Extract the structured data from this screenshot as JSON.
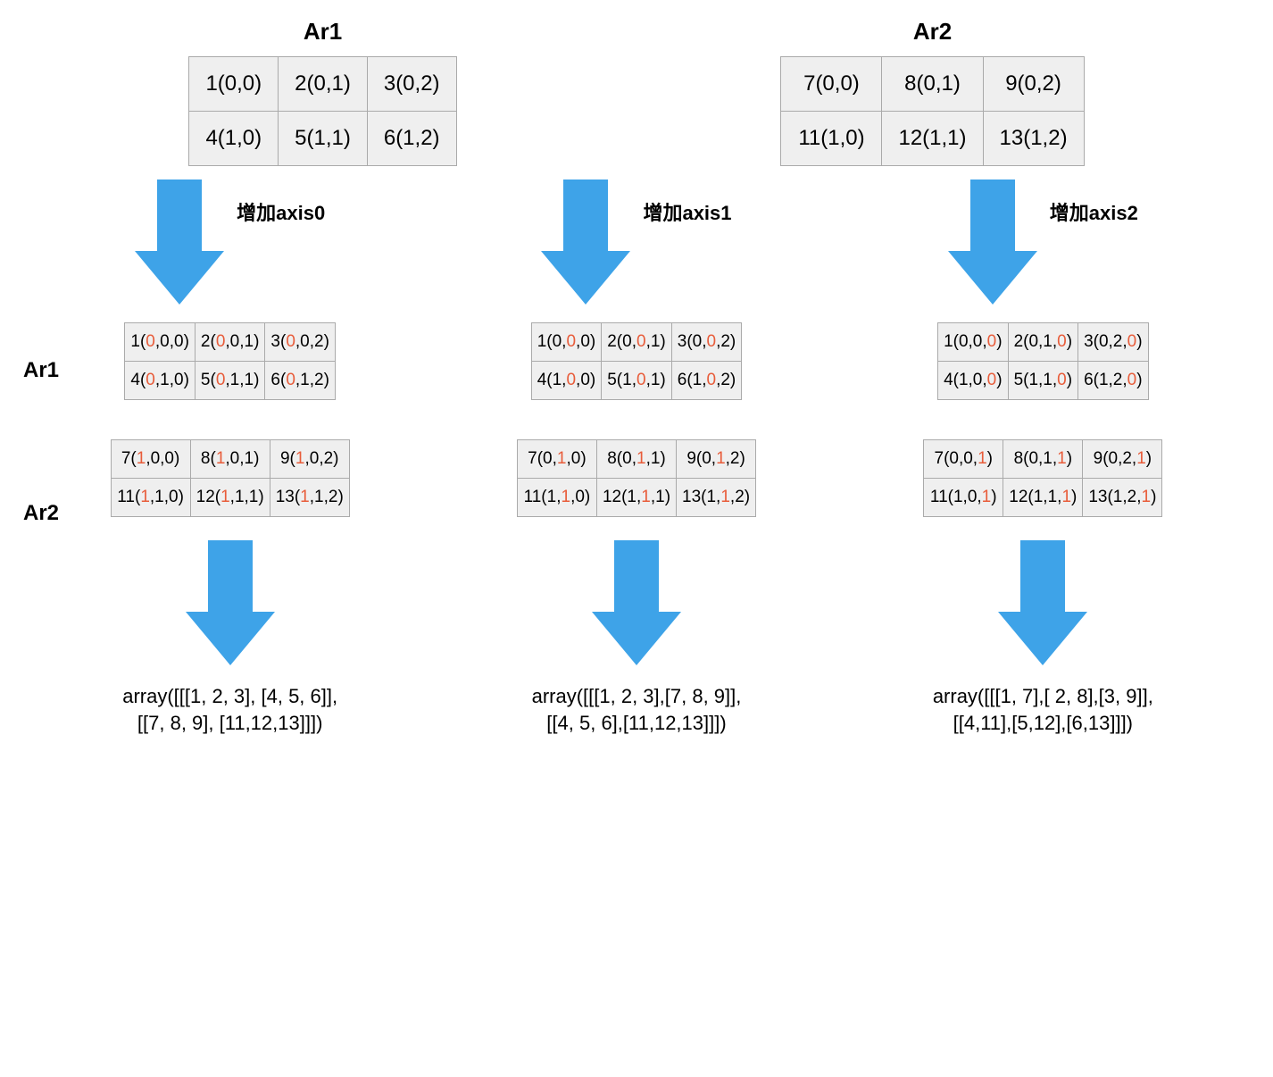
{
  "colors": {
    "arrow": "#3ea3e8",
    "highlight": "#e85c3a",
    "cell_bg": "#efefef",
    "cell_border": "#aaaaaa",
    "text": "#000000",
    "background": "#ffffff"
  },
  "typography": {
    "title_fontsize": 26,
    "cell_fontsize_top": 24,
    "cell_fontsize_mid": 19,
    "label_fontsize": 22,
    "result_fontsize": 22,
    "font_family": "Arial"
  },
  "layout": {
    "type": "diagram",
    "top_grid_rows": 2,
    "top_grid_cols": 3,
    "mid_grid_rows": 2,
    "mid_grid_cols": 3,
    "columns": 3,
    "arrow_shaft_width": 50,
    "arrow_head_width": 100,
    "arrow_total_height": 140
  },
  "top": {
    "ar1": {
      "title": "Ar1",
      "cells": [
        "1(0,0)",
        "2(0,1)",
        "3(0,2)",
        "4(1,0)",
        "5(1,1)",
        "6(1,2)"
      ]
    },
    "ar2": {
      "title": "Ar2",
      "cells": [
        "7(0,0)",
        "8(0,1)",
        "9(0,2)",
        "11(1,0)",
        "12(1,1)",
        "13(1,2)"
      ]
    }
  },
  "arrows": {
    "label0": "增加axis0",
    "label1": "增加axis1",
    "label2": "增加axis2"
  },
  "mid": {
    "side_ar1": "Ar1",
    "side_ar2": "Ar2",
    "col0": {
      "ar1": [
        [
          {
            "t": "1("
          },
          {
            "t": "0",
            "h": 1
          },
          {
            "t": ",0,0)"
          }
        ],
        [
          {
            "t": "2("
          },
          {
            "t": "0",
            "h": 1
          },
          {
            "t": ",0,1)"
          }
        ],
        [
          {
            "t": "3("
          },
          {
            "t": "0",
            "h": 1
          },
          {
            "t": ",0,2)"
          }
        ],
        [
          {
            "t": "4("
          },
          {
            "t": "0",
            "h": 1
          },
          {
            "t": ",1,0)"
          }
        ],
        [
          {
            "t": "5("
          },
          {
            "t": "0",
            "h": 1
          },
          {
            "t": ",1,1)"
          }
        ],
        [
          {
            "t": "6("
          },
          {
            "t": "0",
            "h": 1
          },
          {
            "t": ",1,2)"
          }
        ]
      ],
      "ar2": [
        [
          {
            "t": "7("
          },
          {
            "t": "1",
            "h": 1
          },
          {
            "t": ",0,0)"
          }
        ],
        [
          {
            "t": "8("
          },
          {
            "t": "1",
            "h": 1
          },
          {
            "t": ",0,1)"
          }
        ],
        [
          {
            "t": "9("
          },
          {
            "t": "1",
            "h": 1
          },
          {
            "t": ",0,2)"
          }
        ],
        [
          {
            "t": "11("
          },
          {
            "t": "1",
            "h": 1
          },
          {
            "t": ",1,0)"
          }
        ],
        [
          {
            "t": "12("
          },
          {
            "t": "1",
            "h": 1
          },
          {
            "t": ",1,1)"
          }
        ],
        [
          {
            "t": "13("
          },
          {
            "t": "1",
            "h": 1
          },
          {
            "t": ",1,2)"
          }
        ]
      ]
    },
    "col1": {
      "ar1": [
        [
          {
            "t": "1(0,"
          },
          {
            "t": "0",
            "h": 1
          },
          {
            "t": ",0)"
          }
        ],
        [
          {
            "t": "2(0,"
          },
          {
            "t": "0",
            "h": 1
          },
          {
            "t": ",1)"
          }
        ],
        [
          {
            "t": "3(0,"
          },
          {
            "t": "0",
            "h": 1
          },
          {
            "t": ",2)"
          }
        ],
        [
          {
            "t": "4(1,"
          },
          {
            "t": "0",
            "h": 1
          },
          {
            "t": ",0)"
          }
        ],
        [
          {
            "t": "5(1,"
          },
          {
            "t": "0",
            "h": 1
          },
          {
            "t": ",1)"
          }
        ],
        [
          {
            "t": "6(1,"
          },
          {
            "t": "0",
            "h": 1
          },
          {
            "t": ",2)"
          }
        ]
      ],
      "ar2": [
        [
          {
            "t": "7(0,"
          },
          {
            "t": "1",
            "h": 1
          },
          {
            "t": ",0)"
          }
        ],
        [
          {
            "t": "8(0,"
          },
          {
            "t": "1",
            "h": 1
          },
          {
            "t": ",1)"
          }
        ],
        [
          {
            "t": "9(0,"
          },
          {
            "t": "1",
            "h": 1
          },
          {
            "t": ",2)"
          }
        ],
        [
          {
            "t": "11(1,"
          },
          {
            "t": "1",
            "h": 1
          },
          {
            "t": ",0)"
          }
        ],
        [
          {
            "t": "12(1,"
          },
          {
            "t": "1",
            "h": 1
          },
          {
            "t": ",1)"
          }
        ],
        [
          {
            "t": "13(1,"
          },
          {
            "t": "1",
            "h": 1
          },
          {
            "t": ",2)"
          }
        ]
      ]
    },
    "col2": {
      "ar1": [
        [
          {
            "t": "1(0,0,"
          },
          {
            "t": "0",
            "h": 1
          },
          {
            "t": ")"
          }
        ],
        [
          {
            "t": "2(0,1,"
          },
          {
            "t": "0",
            "h": 1
          },
          {
            "t": ")"
          }
        ],
        [
          {
            "t": "3(0,2,"
          },
          {
            "t": "0",
            "h": 1
          },
          {
            "t": ")"
          }
        ],
        [
          {
            "t": "4(1,0,"
          },
          {
            "t": "0",
            "h": 1
          },
          {
            "t": ")"
          }
        ],
        [
          {
            "t": "5(1,1,"
          },
          {
            "t": "0",
            "h": 1
          },
          {
            "t": ")"
          }
        ],
        [
          {
            "t": "6(1,2,"
          },
          {
            "t": "0",
            "h": 1
          },
          {
            "t": ")"
          }
        ]
      ],
      "ar2": [
        [
          {
            "t": "7(0,0,"
          },
          {
            "t": "1",
            "h": 1
          },
          {
            "t": ")"
          }
        ],
        [
          {
            "t": "8(0,1,"
          },
          {
            "t": "1",
            "h": 1
          },
          {
            "t": ")"
          }
        ],
        [
          {
            "t": "9(0,2,"
          },
          {
            "t": "1",
            "h": 1
          },
          {
            "t": ")"
          }
        ],
        [
          {
            "t": "11(1,0,"
          },
          {
            "t": "1",
            "h": 1
          },
          {
            "t": ")"
          }
        ],
        [
          {
            "t": "12(1,1,"
          },
          {
            "t": "1",
            "h": 1
          },
          {
            "t": ")"
          }
        ],
        [
          {
            "t": "13(1,2,"
          },
          {
            "t": "1",
            "h": 1
          },
          {
            "t": ")"
          }
        ]
      ]
    }
  },
  "results": {
    "r0_l1": "array([[[1, 2, 3], [4, 5, 6]],",
    "r0_l2": "[[7, 8, 9], [11,12,13]]])",
    "r1_l1": "array([[[1, 2, 3],[7, 8, 9]],",
    "r1_l2": "[[4, 5, 6],[11,12,13]]])",
    "r2_l1": "array([[[1, 7],[ 2, 8],[3, 9]],",
    "r2_l2": "[[4,11],[5,12],[6,13]]])"
  }
}
